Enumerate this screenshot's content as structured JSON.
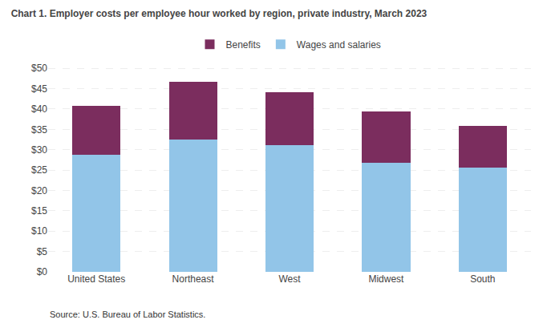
{
  "chart_data": {
    "type": "bar",
    "stacked": true,
    "title": "Chart 1. Employer costs per employee hour worked by region, private industry, March 2023",
    "categories": [
      "United States",
      "Northeast",
      "West",
      "Midwest",
      "South"
    ],
    "series": [
      {
        "name": "Wages and salaries",
        "color": "#92C5E8",
        "values": [
          28.82,
          32.55,
          31.19,
          26.76,
          25.68
        ]
      },
      {
        "name": "Benefits",
        "color": "#7B2D5E",
        "values": [
          11.86,
          14.13,
          13.0,
          12.73,
          10.2
        ]
      }
    ],
    "ylim": [
      0,
      52
    ],
    "yticks": [
      {
        "value": 0,
        "label": "$0"
      },
      {
        "value": 5,
        "label": "$5"
      },
      {
        "value": 10,
        "label": "$10"
      },
      {
        "value": 15,
        "label": "$15"
      },
      {
        "value": 20,
        "label": "$20"
      },
      {
        "value": 25,
        "label": "$25"
      },
      {
        "value": 30,
        "label": "$30"
      },
      {
        "value": 35,
        "label": "$35"
      },
      {
        "value": 40,
        "label": "$40"
      },
      {
        "value": 45,
        "label": "$45"
      },
      {
        "value": 50,
        "label": "$50"
      }
    ],
    "grid": true,
    "legend": "top",
    "annotations": [
      "Source: U.S. Bureau of Labor Statistics."
    ]
  }
}
